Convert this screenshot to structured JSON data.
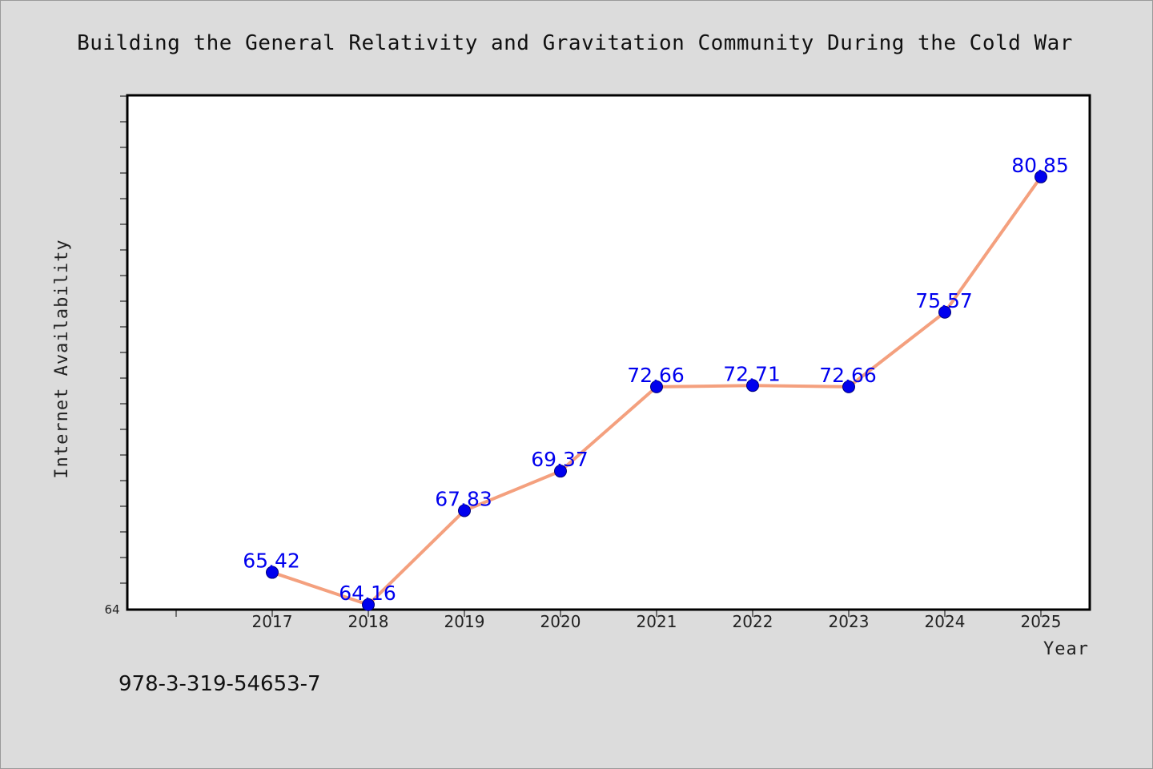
{
  "chart_data": {
    "type": "line",
    "title": "Building the General Relativity and Gravitation Community During the Cold War",
    "xlabel": "Year",
    "ylabel": "Internet Availability",
    "categories": [
      "2017",
      "2018",
      "2019",
      "2020",
      "2021",
      "2022",
      "2023",
      "2024",
      "2025"
    ],
    "series": [
      {
        "values": [
          65.42,
          64.16,
          67.83,
          69.37,
          72.66,
          72.71,
          72.66,
          75.57,
          80.85
        ]
      }
    ],
    "data_labels": [
      "65.42",
      "64.16",
      "67.83",
      "69.37",
      "72.66",
      "72.71",
      "72.66",
      "75.57",
      "80.85"
    ],
    "y_min_label": "64",
    "ylim": [
      64,
      84
    ],
    "grid": false,
    "legend": "none",
    "line_color": "#f4a07e",
    "marker_color": "#0000ee",
    "label_color": "#0000ee",
    "footnote": "978-3-319-54653-7"
  }
}
